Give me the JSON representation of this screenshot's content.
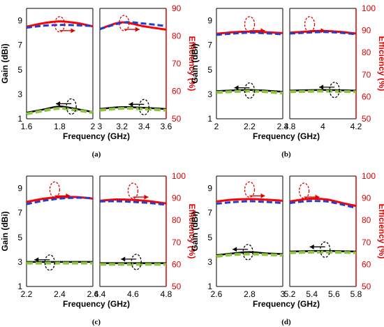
{
  "chart_data": [
    {
      "type": "line",
      "panel_label": "(a)",
      "xlabel": "Frequency (GHz)",
      "ylabel": "Gain (dBi)",
      "y2label": "Efficiency (%)",
      "ylim": [
        1,
        10
      ],
      "yticks": [
        1,
        3,
        5,
        7,
        9
      ],
      "y2lim": [
        50,
        90
      ],
      "y2ticks": [
        50,
        60,
        70,
        80,
        90
      ],
      "subplots": [
        {
          "xlim": [
            1.6,
            2.0
          ],
          "xticks": [
            "1.6",
            "1.8",
            "2"
          ],
          "series": [
            {
              "axis": "efficiency",
              "style": "red-solid",
              "x": [
                1.6,
                1.7,
                1.8,
                1.9,
                2.0
              ],
              "values": [
                83.4,
                84.6,
                85.3,
                84.7,
                83.5
              ]
            },
            {
              "axis": "efficiency",
              "style": "blue-dashed",
              "x": [
                1.6,
                1.7,
                1.8,
                1.9,
                2.0
              ],
              "values": [
                83.0,
                83.7,
                84.0,
                83.9,
                83.6
              ]
            },
            {
              "axis": "gain",
              "style": "black-solid",
              "x": [
                1.6,
                1.7,
                1.8,
                1.9,
                2.0
              ],
              "values": [
                1.5,
                1.75,
                2.0,
                1.8,
                1.55
              ]
            },
            {
              "axis": "gain",
              "style": "green-dashed",
              "x": [
                1.6,
                1.7,
                1.8,
                1.9,
                2.0
              ],
              "values": [
                1.4,
                1.65,
                1.85,
                1.7,
                1.5
              ]
            }
          ]
        },
        {
          "xlim": [
            3.0,
            3.6
          ],
          "xticks": [
            "3",
            "3.2",
            "3.4",
            "3.6"
          ],
          "series": [
            {
              "axis": "efficiency",
              "style": "red-solid",
              "x": [
                3.0,
                3.15,
                3.25,
                3.4,
                3.6
              ],
              "values": [
                82.5,
                84.6,
                84.8,
                83.5,
                82.3
              ]
            },
            {
              "axis": "efficiency",
              "style": "blue-dashed",
              "x": [
                3.0,
                3.15,
                3.25,
                3.4,
                3.6
              ],
              "values": [
                82.5,
                84.3,
                85.0,
                84.5,
                83.6
              ]
            },
            {
              "axis": "gain",
              "style": "black-solid",
              "x": [
                3.0,
                3.2,
                3.4,
                3.6
              ],
              "values": [
                1.8,
                1.95,
                1.9,
                1.8
              ]
            },
            {
              "axis": "gain",
              "style": "green-dashed",
              "x": [
                3.0,
                3.2,
                3.4,
                3.6
              ],
              "values": [
                1.7,
                1.85,
                1.8,
                1.7
              ]
            }
          ]
        }
      ],
      "annotations": [
        {
          "subplot": 0,
          "type": "ellipse",
          "color": "#e00000",
          "cx": 1.8,
          "cy": 8.7,
          "arrow": "right"
        },
        {
          "subplot": 1,
          "type": "ellipse",
          "color": "#e00000",
          "cx": 3.22,
          "cy": 8.8,
          "arrow": "right"
        },
        {
          "subplot": 0,
          "type": "ellipse",
          "color": "#000000",
          "cx": 1.87,
          "cy": 2.0,
          "arrow": "left"
        },
        {
          "subplot": 1,
          "type": "ellipse",
          "color": "#000000",
          "cx": 3.4,
          "cy": 1.95,
          "arrow": "left"
        }
      ]
    },
    {
      "type": "line",
      "panel_label": "(b)",
      "xlabel": "Frequency (GHz)",
      "ylabel": "Gain (dBi)",
      "y2label": "Efficiency (%)",
      "ylim": [
        1,
        10
      ],
      "yticks": [
        1,
        3,
        5,
        7,
        9
      ],
      "y2lim": [
        50,
        100
      ],
      "y2ticks": [
        50,
        60,
        70,
        80,
        90,
        100
      ],
      "subplots": [
        {
          "xlim": [
            2.0,
            2.4
          ],
          "xticks": [
            "2",
            "2.2",
            "2.4"
          ],
          "series": [
            {
              "axis": "efficiency",
              "style": "red-solid",
              "x": [
                2.0,
                2.1,
                2.2,
                2.3,
                2.4
              ],
              "values": [
                88.5,
                89.2,
                89.5,
                89.2,
                88.8
              ]
            },
            {
              "axis": "efficiency",
              "style": "blue-dashed",
              "x": [
                2.0,
                2.1,
                2.2,
                2.3,
                2.4
              ],
              "values": [
                88.0,
                88.6,
                89.0,
                88.7,
                88.3
              ]
            },
            {
              "axis": "gain",
              "style": "black-solid",
              "x": [
                2.0,
                2.2,
                2.4
              ],
              "values": [
                3.25,
                3.35,
                3.2
              ]
            },
            {
              "axis": "gain",
              "style": "green-dashed",
              "x": [
                2.0,
                2.2,
                2.4
              ],
              "values": [
                3.15,
                3.25,
                3.1
              ]
            }
          ]
        },
        {
          "xlim": [
            3.8,
            4.2
          ],
          "xticks": [
            "3.8",
            "4",
            "4.2"
          ],
          "series": [
            {
              "axis": "efficiency",
              "style": "red-solid",
              "x": [
                3.8,
                3.9,
                4.0,
                4.1,
                4.2
              ],
              "values": [
                89.0,
                89.5,
                89.8,
                89.4,
                88.6
              ]
            },
            {
              "axis": "efficiency",
              "style": "blue-dashed",
              "x": [
                3.8,
                3.9,
                4.0,
                4.1,
                4.2
              ],
              "values": [
                88.6,
                89.0,
                89.3,
                89.0,
                88.3
              ]
            },
            {
              "axis": "gain",
              "style": "black-solid",
              "x": [
                3.8,
                4.0,
                4.2
              ],
              "values": [
                3.3,
                3.35,
                3.3
              ]
            },
            {
              "axis": "gain",
              "style": "green-dashed",
              "x": [
                3.8,
                4.0,
                4.2
              ],
              "values": [
                3.2,
                3.25,
                3.2
              ]
            }
          ]
        }
      ],
      "annotations": [
        {
          "subplot": 0,
          "type": "ellipse",
          "color": "#e00000",
          "cx": 2.2,
          "cy": 8.7,
          "arrow": "right"
        },
        {
          "subplot": 1,
          "type": "ellipse",
          "color": "#e00000",
          "cx": 3.92,
          "cy": 8.7,
          "arrow": "right"
        },
        {
          "subplot": 0,
          "type": "ellipse",
          "color": "#000000",
          "cx": 2.2,
          "cy": 3.3,
          "arrow": "left"
        },
        {
          "subplot": 1,
          "type": "ellipse",
          "color": "#000000",
          "cx": 4.07,
          "cy": 3.35,
          "arrow": "left"
        }
      ]
    },
    {
      "type": "line",
      "panel_label": "(c)",
      "xlabel": "Frequency (GHz)",
      "ylabel": "Gain (dBi)",
      "y2label": "Efficiency (%)",
      "ylim": [
        1,
        10
      ],
      "yticks": [
        1,
        3,
        5,
        7,
        9
      ],
      "y2lim": [
        50,
        100
      ],
      "y2ticks": [
        50,
        60,
        70,
        80,
        90,
        100
      ],
      "subplots": [
        {
          "xlim": [
            2.2,
            2.6
          ],
          "xticks": [
            "2.2",
            "2.4",
            "2.6"
          ],
          "series": [
            {
              "axis": "efficiency",
              "style": "red-solid",
              "x": [
                2.2,
                2.3,
                2.4,
                2.5,
                2.6
              ],
              "values": [
                88.3,
                89.7,
                90.4,
                90.5,
                89.8
              ]
            },
            {
              "axis": "efficiency",
              "style": "blue-dashed",
              "x": [
                2.2,
                2.3,
                2.4,
                2.5,
                2.6
              ],
              "values": [
                87.3,
                88.8,
                89.8,
                90.2,
                90.0
              ]
            },
            {
              "axis": "gain",
              "style": "black-solid",
              "x": [
                2.2,
                2.4,
                2.6
              ],
              "values": [
                3.0,
                3.0,
                3.0
              ]
            },
            {
              "axis": "gain",
              "style": "green-dashed",
              "x": [
                2.2,
                2.4,
                2.6
              ],
              "values": [
                2.9,
                2.9,
                2.9
              ]
            }
          ]
        },
        {
          "xlim": [
            4.4,
            4.8
          ],
          "xticks": [
            "4.4",
            "4.6",
            "4.8"
          ],
          "series": [
            {
              "axis": "efficiency",
              "style": "red-solid",
              "x": [
                4.4,
                4.5,
                4.6,
                4.7,
                4.8
              ],
              "values": [
                88.8,
                89.4,
                89.2,
                88.6,
                87.6
              ]
            },
            {
              "axis": "efficiency",
              "style": "blue-dashed",
              "x": [
                4.4,
                4.5,
                4.6,
                4.7,
                4.8
              ],
              "values": [
                88.5,
                88.6,
                88.3,
                87.8,
                87.0
              ]
            },
            {
              "axis": "gain",
              "style": "black-solid",
              "x": [
                4.4,
                4.6,
                4.8
              ],
              "values": [
                2.9,
                2.9,
                2.9
              ]
            },
            {
              "axis": "gain",
              "style": "green-dashed",
              "x": [
                4.4,
                4.6,
                4.8
              ],
              "values": [
                2.8,
                2.8,
                2.8
              ]
            }
          ]
        }
      ],
      "annotations": [
        {
          "subplot": 0,
          "type": "ellipse",
          "color": "#e00000",
          "cx": 2.37,
          "cy": 8.9,
          "arrow": "right"
        },
        {
          "subplot": 1,
          "type": "ellipse",
          "color": "#e00000",
          "cx": 4.6,
          "cy": 8.8,
          "arrow": "right"
        },
        {
          "subplot": 0,
          "type": "ellipse",
          "color": "#000000",
          "cx": 2.34,
          "cy": 2.95,
          "arrow": "left"
        },
        {
          "subplot": 1,
          "type": "ellipse",
          "color": "#000000",
          "cx": 4.62,
          "cy": 3.0,
          "arrow": "left"
        }
      ]
    },
    {
      "type": "line",
      "panel_label": "(d)",
      "xlabel": "Frequency (GHz)",
      "ylabel": "Gain (dBi)",
      "y2label": "Efficiency (%)",
      "ylim": [
        1,
        10
      ],
      "yticks": [
        1,
        3,
        5,
        7,
        9
      ],
      "y2lim": [
        50,
        100
      ],
      "y2ticks": [
        50,
        60,
        70,
        80,
        90,
        100
      ],
      "subplots": [
        {
          "xlim": [
            2.6,
            3.0
          ],
          "xticks": [
            "2.6",
            "2.8",
            "3"
          ],
          "series": [
            {
              "axis": "efficiency",
              "style": "red-solid",
              "x": [
                2.6,
                2.7,
                2.8,
                2.9,
                3.0
              ],
              "values": [
                88.5,
                89.3,
                89.6,
                89.3,
                88.8
              ]
            },
            {
              "axis": "efficiency",
              "style": "blue-dashed",
              "x": [
                2.6,
                2.7,
                2.8,
                2.9,
                3.0
              ],
              "values": [
                87.5,
                88.2,
                88.6,
                88.3,
                87.8
              ]
            },
            {
              "axis": "gain",
              "style": "black-solid",
              "x": [
                2.6,
                2.7,
                2.8,
                2.9,
                3.0
              ],
              "values": [
                3.55,
                3.7,
                3.8,
                3.7,
                3.65
              ]
            },
            {
              "axis": "gain",
              "style": "green-dashed",
              "x": [
                2.6,
                2.7,
                2.8,
                2.9,
                3.0
              ],
              "values": [
                3.45,
                3.6,
                3.65,
                3.6,
                3.55
              ]
            }
          ]
        },
        {
          "xlim": [
            5.2,
            5.8
          ],
          "xticks": [
            "5.2",
            "5.4",
            "5.6",
            "5.8"
          ],
          "series": [
            {
              "axis": "efficiency",
              "style": "red-solid",
              "x": [
                5.2,
                5.35,
                5.45,
                5.55,
                5.7,
                5.8
              ],
              "values": [
                88.5,
                89.6,
                89.7,
                89.3,
                87.5,
                86.5
              ]
            },
            {
              "axis": "efficiency",
              "style": "blue-dashed",
              "x": [
                5.2,
                5.35,
                5.45,
                5.55,
                5.7,
                5.8
              ],
              "values": [
                87.8,
                88.6,
                88.7,
                88.4,
                86.8,
                85.5
              ]
            },
            {
              "axis": "gain",
              "style": "black-solid",
              "x": [
                5.2,
                5.5,
                5.8
              ],
              "values": [
                3.85,
                3.9,
                3.85
              ]
            },
            {
              "axis": "gain",
              "style": "green-dashed",
              "x": [
                5.2,
                5.5,
                5.8
              ],
              "values": [
                3.75,
                3.8,
                3.75
              ]
            }
          ]
        }
      ],
      "annotations": [
        {
          "subplot": 0,
          "type": "ellipse",
          "color": "#e00000",
          "cx": 2.8,
          "cy": 8.9,
          "arrow": "right"
        },
        {
          "subplot": 1,
          "type": "ellipse",
          "color": "#e00000",
          "cx": 5.33,
          "cy": 8.8,
          "arrow": "right"
        },
        {
          "subplot": 0,
          "type": "ellipse",
          "color": "#000000",
          "cx": 2.79,
          "cy": 3.8,
          "arrow": "left"
        },
        {
          "subplot": 1,
          "type": "ellipse",
          "color": "#000000",
          "cx": 5.52,
          "cy": 4.0,
          "arrow": "left"
        }
      ]
    }
  ],
  "colors": {
    "efficiency_axis": "#e00000",
    "red_solid": "#ff0000",
    "blue_dashed": "#1f3fd0",
    "black_solid": "#000000",
    "green_dashed": "#8cc63f"
  }
}
